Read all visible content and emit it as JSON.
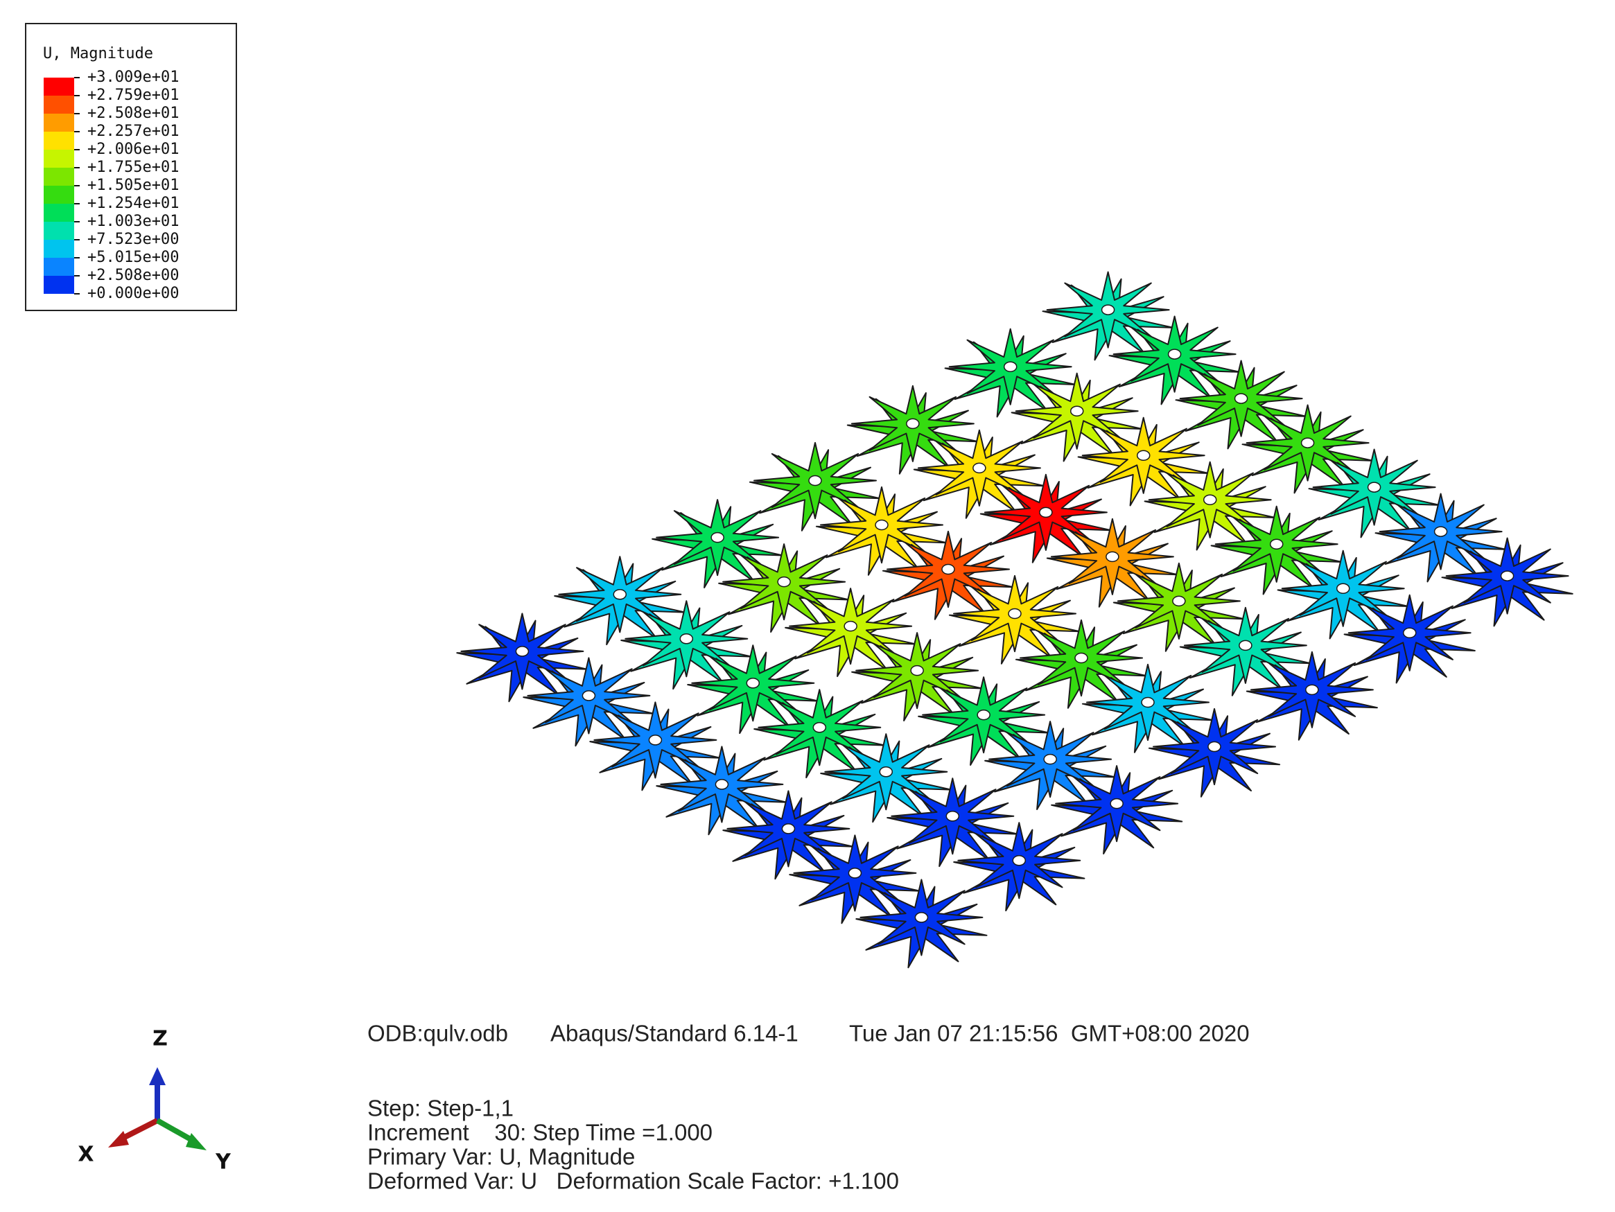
{
  "legend": {
    "title": "U, Magnitude",
    "labels": [
      "+3.009e+01",
      "+2.759e+01",
      "+2.508e+01",
      "+2.257e+01",
      "+2.006e+01",
      "+1.755e+01",
      "+1.505e+01",
      "+1.254e+01",
      "+1.003e+01",
      "+7.523e+00",
      "+5.015e+00",
      "+2.508e+00",
      "+0.000e+00"
    ],
    "colors": [
      "#ff0000",
      "#ff5000",
      "#ff9c00",
      "#ffe100",
      "#c6f500",
      "#7ce600",
      "#35dc10",
      "#00de58",
      "#00e0ae",
      "#00c4ee",
      "#0a84ff",
      "#0032f0"
    ]
  },
  "info": {
    "odb": "ODB:qulv.odb",
    "version": "Abaqus/Standard 6.14-1",
    "date": "Tue Jan 07 21:15:56  GMT+08:00 2020",
    "step": "Step: Step-1,1",
    "increment": "Increment    30: Step Time =1.000",
    "primary_var": "Primary Var: U, Magnitude",
    "deformed_var": "Deformed Var: U   Deformation Scale Factor: +1.100"
  },
  "triad": {
    "x": "X",
    "y": "Y",
    "z": "Z"
  }
}
